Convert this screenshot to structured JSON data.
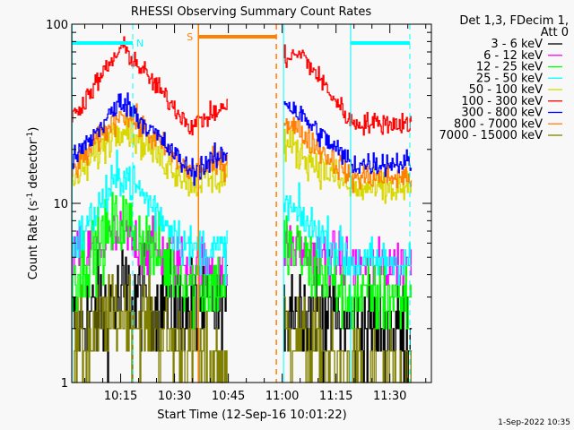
{
  "chart_data": {
    "type": "line",
    "title": "RHESSI Observing Summary Count Rates",
    "xlabel": "Start Time (12-Sep-16 10:01:22)",
    "ylabel": "Count Rate (s⁻¹ detector⁻¹)",
    "ylabel_parts": {
      "main": "Count Rate (s",
      "sup1": "-1",
      "mid": " detector",
      "sup2": "-1",
      "end": ")"
    },
    "x_units": "minutes since 10:01:22",
    "xlim": [
      0,
      100.2
    ],
    "ylim": [
      1,
      100
    ],
    "yscale": "log",
    "x_ticks": [
      {
        "t": 13.63,
        "label": "10:15"
      },
      {
        "t": 28.63,
        "label": "10:30"
      },
      {
        "t": 43.63,
        "label": "10:45"
      },
      {
        "t": 58.63,
        "label": "11:00"
      },
      {
        "t": 73.63,
        "label": "11:15"
      },
      {
        "t": 88.63,
        "label": "11:30"
      }
    ],
    "y_ticks": [
      {
        "v": 1,
        "label": "1"
      },
      {
        "v": 10,
        "label": "10"
      },
      {
        "v": 100,
        "label": "100"
      }
    ],
    "legend": {
      "placement": "right",
      "header1": "Det 1,3, FDecim 1,",
      "header2": "Att 0"
    },
    "series": [
      {
        "name": "3 - 6 keV",
        "color": "#000000",
        "noise": 0.35,
        "segments": [
          [
            [
              0,
              2
            ],
            [
              14,
              3
            ],
            [
              33,
              2.5
            ],
            [
              43.3,
              2.5
            ]
          ],
          [
            [
              59,
              3
            ],
            [
              78,
              2
            ],
            [
              94.7,
              2
            ]
          ]
        ]
      },
      {
        "name": "6 - 12 keV",
        "color": "#ff00ff",
        "noise": 0.18,
        "segments": [
          [
            [
              0,
              5
            ],
            [
              14,
              6.5
            ],
            [
              33,
              4.5
            ],
            [
              43.3,
              4.5
            ]
          ],
          [
            [
              59,
              6
            ],
            [
              78,
              4.5
            ],
            [
              94.7,
              4.5
            ]
          ]
        ]
      },
      {
        "name": "12 - 25 keV",
        "color": "#00ff00",
        "noise": 0.25,
        "segments": [
          [
            [
              0,
              4
            ],
            [
              14,
              8
            ],
            [
              33,
              3.5
            ],
            [
              43.3,
              3.5
            ]
          ],
          [
            [
              59,
              6
            ],
            [
              78,
              3
            ],
            [
              94.7,
              3
            ]
          ]
        ]
      },
      {
        "name": "25 - 50 keV",
        "color": "#00ffff",
        "noise": 0.15,
        "segments": [
          [
            [
              0,
              5.5
            ],
            [
              14,
              15
            ],
            [
              33,
              5.5
            ],
            [
              43.3,
              5.5
            ]
          ],
          [
            [
              59,
              10
            ],
            [
              78,
              4.7
            ],
            [
              94.7,
              4.7
            ]
          ]
        ]
      },
      {
        "name": "50 - 100 keV",
        "color": "#d8d800",
        "noise": 0.12,
        "segments": [
          [
            [
              0,
              13
            ],
            [
              14,
              28
            ],
            [
              33,
              13
            ],
            [
              43.3,
              14
            ]
          ],
          [
            [
              59,
              22
            ],
            [
              78,
              12
            ],
            [
              94.7,
              12
            ]
          ]
        ]
      },
      {
        "name": "100 - 300 keV",
        "color": "#ff0000",
        "noise": 0.07,
        "segments": [
          [
            [
              0,
              30
            ],
            [
              14,
              75
            ],
            [
              33,
              27
            ],
            [
              43.3,
              35
            ]
          ],
          [
            [
              59,
              65
            ],
            [
              64,
              68
            ],
            [
              78,
              28
            ],
            [
              94.7,
              28
            ]
          ]
        ]
      },
      {
        "name": "300 - 800 keV",
        "color": "#0000ff",
        "noise": 0.08,
        "segments": [
          [
            [
              0,
              17
            ],
            [
              14,
              38
            ],
            [
              33,
              15
            ],
            [
              43.3,
              19
            ]
          ],
          [
            [
              59,
              38
            ],
            [
              78,
              16.5
            ],
            [
              94.7,
              17
            ]
          ]
        ]
      },
      {
        "name": "800 - 7000 keV",
        "color": "#ff8000",
        "noise": 0.09,
        "segments": [
          [
            [
              0,
              15
            ],
            [
              14,
              33
            ],
            [
              33,
              15
            ],
            [
              43.3,
              17
            ]
          ],
          [
            [
              59,
              30
            ],
            [
              78,
              14
            ],
            [
              94.7,
              14
            ]
          ]
        ]
      },
      {
        "name": "7000 - 15000 keV",
        "color": "#808000",
        "noise": 0.3,
        "segments": [
          [
            [
              0,
              1.5
            ],
            [
              14,
              2.5
            ],
            [
              33,
              1.5
            ],
            [
              43.3,
              1.2
            ]
          ],
          [
            [
              59,
              2
            ],
            [
              78,
              1.1
            ],
            [
              94.7,
              1
            ]
          ]
        ]
      }
    ],
    "draw_order": [
      0,
      8,
      1,
      2,
      3,
      4,
      7,
      6,
      5
    ],
    "annotations": {
      "night_bars": [
        [
          0,
          17
        ],
        [
          77.7,
          94.2
        ]
      ],
      "saa_bar": [
        35.3,
        57
      ],
      "n_label": "N",
      "s_label": "S",
      "n_marker_t": 17,
      "s_marker_t": 35.3,
      "saa_end_t": 57,
      "data_start_t": 59,
      "eclipse_start_t": 77.7,
      "eclipse_end_t": 94.2
    },
    "colors": {
      "night": "#00ffff",
      "saa": "#ff8000",
      "grid": "#909090"
    }
  },
  "footer": {
    "timestamp": "1-Sep-2022 10:35"
  }
}
